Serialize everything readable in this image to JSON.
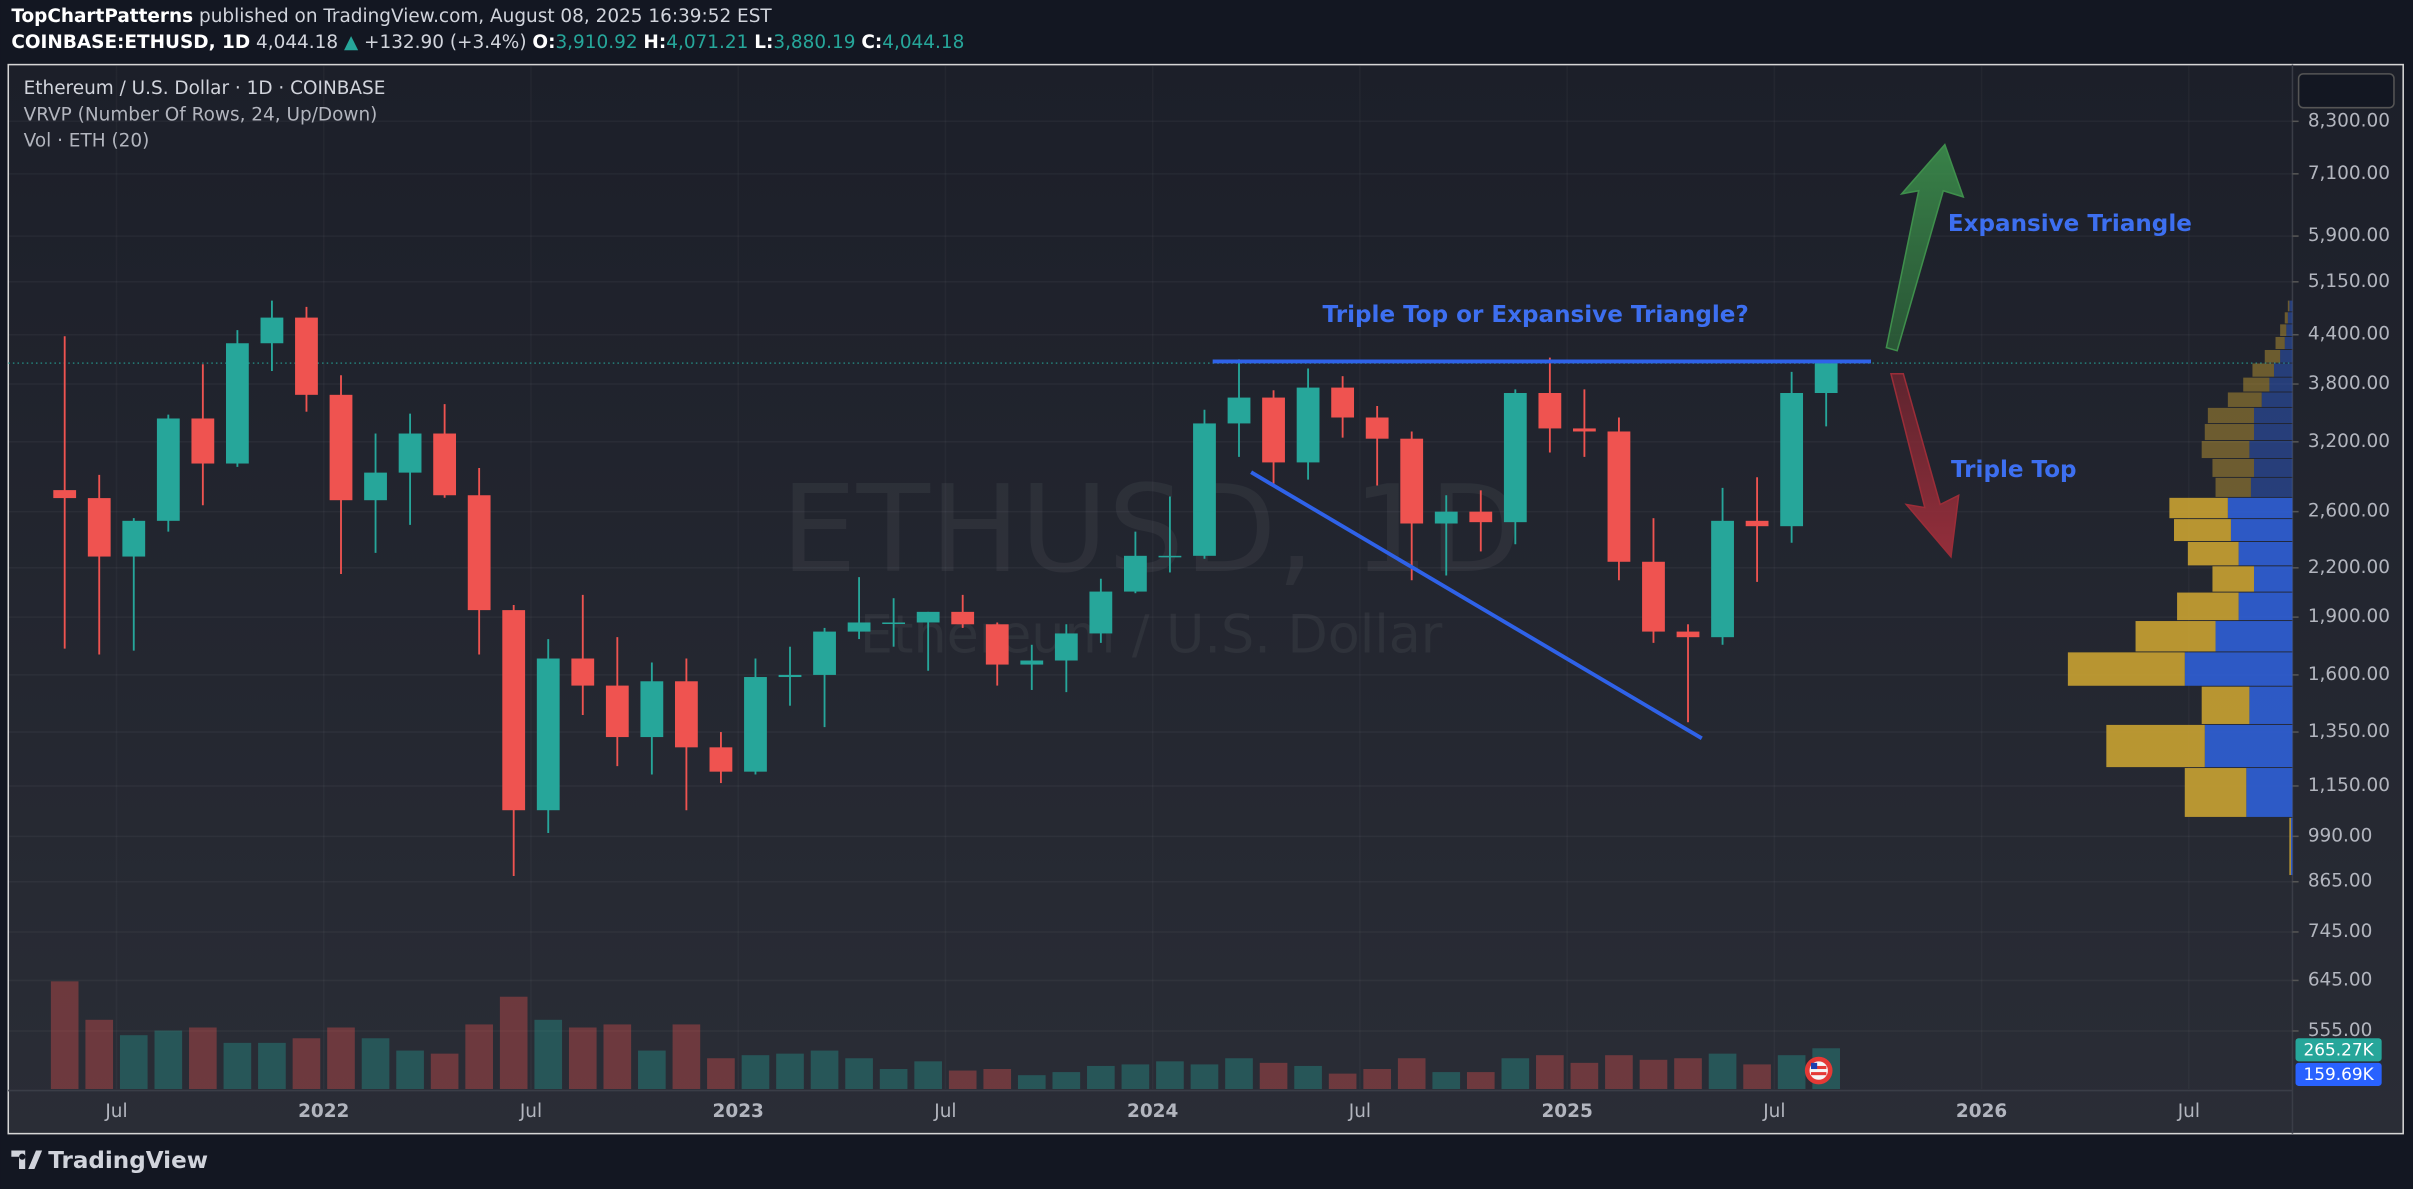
{
  "header": {
    "author": "TopChartPatterns",
    "published": "published on TradingView.com, August 08, 2025 16:39:52 EST",
    "symbol": "COINBASE:ETHUSD, 1D",
    "price": "4,044.18",
    "change": "+132.90 (+3.4%)",
    "ohlc": [
      {
        "label": "O:",
        "value": "3,910.92"
      },
      {
        "label": "H:",
        "value": "4,071.21"
      },
      {
        "label": "L:",
        "value": "3,880.19"
      },
      {
        "label": "C:",
        "value": "4,044.18"
      }
    ]
  },
  "footer": {
    "brand": "TradingView"
  },
  "chart_data": {
    "type": "candlestick",
    "title": "Ethereum / U.S. Dollar · 1D · COINBASE",
    "indicators": [
      "VRVP (Number Of Rows, 24, Up/Down)",
      "Vol · ETH (20)"
    ],
    "watermark": [
      "ETHUSD, 1D",
      "Ethereum / U.S. Dollar"
    ],
    "currency": "USD",
    "x": [
      "2021-05",
      "2021-06",
      "2021-07",
      "2021-08",
      "2021-09",
      "2021-10",
      "2021-11",
      "2021-12",
      "2022-01",
      "2022-02",
      "2022-03",
      "2022-04",
      "2022-05",
      "2022-06",
      "2022-07",
      "2022-08",
      "2022-09",
      "2022-10",
      "2022-11",
      "2022-12",
      "2023-01",
      "2023-02",
      "2023-03",
      "2023-04",
      "2023-05",
      "2023-06",
      "2023-07",
      "2023-08",
      "2023-09",
      "2023-10",
      "2023-11",
      "2023-12",
      "2024-01",
      "2024-02",
      "2024-03",
      "2024-04",
      "2024-05",
      "2024-06",
      "2024-07",
      "2024-08",
      "2024-09",
      "2024-10",
      "2024-11",
      "2024-12",
      "2025-01",
      "2025-02",
      "2025-03",
      "2025-04",
      "2025-05",
      "2025-06",
      "2025-07",
      "2025-08"
    ],
    "open": [
      2772,
      2707,
      2275,
      2530,
      3430,
      3000,
      4290,
      4630,
      3680,
      2690,
      2920,
      3280,
      2730,
      1940,
      1070,
      1680,
      1550,
      1330,
      1570,
      1290,
      1200,
      1590,
      1600,
      1820,
      1870,
      1870,
      1930,
      1860,
      1650,
      1670,
      1810,
      2050,
      2280,
      2280,
      3380,
      3650,
      3010,
      3760,
      3440,
      3230,
      2510,
      2600,
      2520,
      3700,
      3330,
      3300,
      2240,
      1820,
      1790,
      2530,
      2490,
      3700
    ],
    "high": [
      4380,
      2900,
      2550,
      3470,
      4030,
      4460,
      4870,
      4780,
      3900,
      3280,
      3480,
      3580,
      2960,
      1970,
      1780,
      2030,
      1790,
      1660,
      1680,
      1350,
      1680,
      1740,
      1840,
      2140,
      2010,
      1930,
      2030,
      1870,
      1750,
      1860,
      2130,
      2450,
      2720,
      3520,
      4090,
      3730,
      3980,
      3890,
      3560,
      3300,
      2730,
      2770,
      3740,
      4110,
      3740,
      3440,
      2550,
      1860,
      2790,
      2880,
      3940,
      4071
    ],
    "low": [
      1730,
      1700,
      1720,
      2450,
      2650,
      2970,
      3950,
      3500,
      2160,
      2300,
      2500,
      2710,
      1700,
      880,
      1000,
      1420,
      1220,
      1190,
      1070,
      1160,
      1190,
      1460,
      1370,
      1780,
      1740,
      1620,
      1840,
      1550,
      1530,
      1520,
      1760,
      2040,
      2170,
      2260,
      3060,
      2810,
      2860,
      3240,
      2810,
      2120,
      2150,
      2310,
      2360,
      3100,
      3060,
      2120,
      1760,
      1390,
      1750,
      2110,
      2370,
      3350
    ],
    "close": [
      2707,
      2275,
      2530,
      3430,
      3000,
      4290,
      4630,
      3680,
      2690,
      2920,
      3280,
      2730,
      1940,
      1070,
      1680,
      1550,
      1330,
      1570,
      1290,
      1200,
      1590,
      1600,
      1820,
      1870,
      1870,
      1930,
      1860,
      1650,
      1670,
      1810,
      2050,
      2280,
      2280,
      3380,
      3650,
      3010,
      3760,
      3440,
      3230,
      2510,
      2600,
      2520,
      3700,
      3330,
      3300,
      2240,
      1820,
      1790,
      2530,
      2490,
      3700,
      4044
    ],
    "volume": [
      700,
      450,
      350,
      380,
      400,
      300,
      300,
      330,
      400,
      330,
      250,
      230,
      420,
      600,
      450,
      400,
      420,
      250,
      420,
      200,
      220,
      230,
      250,
      200,
      130,
      180,
      120,
      130,
      90,
      110,
      150,
      160,
      180,
      160,
      200,
      170,
      150,
      100,
      130,
      200,
      110,
      110,
      200,
      220,
      170,
      220,
      190,
      200,
      230,
      160,
      220,
      265
    ],
    "volume_labels": [
      "265.27K",
      "159.69K"
    ],
    "profile": {
      "bins": [
        880,
        1046,
        1213,
        1379,
        1545,
        1711,
        1878,
        2044,
        2210,
        2376,
        2543,
        2709,
        2875,
        3041,
        3208,
        3374,
        3540,
        3706,
        3873,
        4039,
        4205,
        4371,
        4538,
        4704,
        4870
      ],
      "up": [
        1,
        30,
        57,
        28,
        70,
        50,
        35,
        25,
        35,
        40,
        42,
        27,
        25,
        28,
        25,
        25,
        20,
        15,
        12,
        8,
        5,
        4,
        3,
        2
      ],
      "down": [
        1,
        40,
        64,
        31,
        76,
        52,
        40,
        27,
        33,
        37,
        38,
        23,
        27,
        31,
        32,
        30,
        22,
        17,
        14,
        10,
        6,
        4,
        2,
        1
      ]
    },
    "annotations": [
      "Triple Top or Expansive Triangle?",
      "Expansive Triangle",
      "Triple Top"
    ],
    "log_y": true,
    "grid": true,
    "ylim": [
      467,
      9780
    ],
    "yticks": [
      {
        "value": 8300,
        "label": "8,300.00"
      },
      {
        "value": 7100,
        "label": "7,100.00"
      },
      {
        "value": 5900,
        "label": "5,900.00"
      },
      {
        "value": 5150,
        "label": "5,150.00"
      },
      {
        "value": 4400,
        "label": "4,400.00"
      },
      {
        "value": 3800,
        "label": "3,800.00"
      },
      {
        "value": 3200,
        "label": "3,200.00"
      },
      {
        "value": 2600,
        "label": "2,600.00"
      },
      {
        "value": 2200,
        "label": "2,200.00"
      },
      {
        "value": 1900,
        "label": "1,900.00"
      },
      {
        "value": 1600,
        "label": "1,600.00"
      },
      {
        "value": 1350,
        "label": "1,350.00"
      },
      {
        "value": 1150,
        "label": "1,150.00"
      },
      {
        "value": 990,
        "label": "990.00"
      },
      {
        "value": 865,
        "label": "865.00"
      },
      {
        "value": 745,
        "label": "745.00"
      },
      {
        "value": 645,
        "label": "645.00"
      },
      {
        "value": 555,
        "label": "555.00"
      }
    ],
    "xlim": [
      "2021-04",
      "2026-10"
    ],
    "xticks": [
      {
        "value": "2021-07",
        "label": "Jul"
      },
      {
        "value": "2022-01",
        "label": "2022"
      },
      {
        "value": "2022-07",
        "label": "Jul"
      },
      {
        "value": "2023-01",
        "label": "2023"
      },
      {
        "value": "2023-07",
        "label": "Jul"
      },
      {
        "value": "2024-01",
        "label": "2024"
      },
      {
        "value": "2024-07",
        "label": "Jul"
      },
      {
        "value": "2025-01",
        "label": "2025"
      },
      {
        "value": "2025-07",
        "label": "Jul"
      },
      {
        "value": "2026-01",
        "label": "2026"
      },
      {
        "value": "2026-07",
        "label": "Jul"
      }
    ],
    "colors": {
      "up": "#26a69a",
      "down": "#ef5350",
      "profile_up": "#2f5fd6",
      "profile_down": "#c9a232",
      "drawing": "#2f62e8",
      "volume_ma": "#2962ff"
    }
  }
}
